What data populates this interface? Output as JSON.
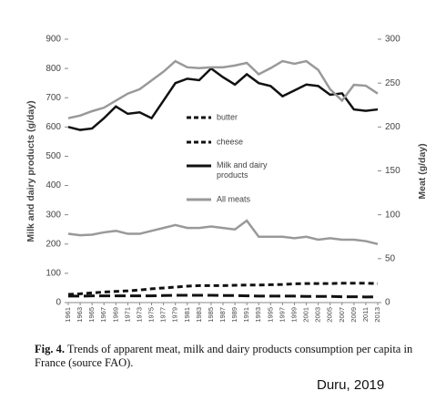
{
  "chart_data": {
    "type": "line",
    "categories": [
      "1961",
      "1963",
      "1965",
      "1967",
      "1969",
      "1971",
      "1973",
      "1975",
      "1977",
      "1979",
      "1981",
      "1983",
      "1985",
      "1987",
      "1989",
      "1991",
      "1993",
      "1995",
      "1997",
      "1999",
      "2001",
      "2003",
      "2005",
      "2007",
      "2009",
      "2011",
      "2013"
    ],
    "ylabel": "Milk and dairy products (g/day)",
    "y2label": "Meat (g/day)",
    "ylim": [
      0,
      900
    ],
    "yticks": [
      0,
      100,
      200,
      300,
      400,
      500,
      600,
      700,
      800,
      900
    ],
    "y2lim": [
      0,
      300
    ],
    "y2ticks": [
      0,
      50,
      100,
      150,
      200,
      250,
      300
    ],
    "series": [
      {
        "name": "butter",
        "color": "#111111",
        "dash": "long",
        "values": [
          22,
          22,
          23,
          23,
          23,
          23,
          23,
          23,
          24,
          25,
          25,
          25,
          25,
          24,
          24,
          23,
          22,
          22,
          22,
          22,
          21,
          21,
          21,
          20,
          20,
          19,
          20
        ]
      },
      {
        "name": "cheese",
        "color": "#111111",
        "dash": "short",
        "values": [
          28,
          30,
          33,
          36,
          38,
          40,
          43,
          47,
          50,
          53,
          56,
          58,
          58,
          58,
          59,
          60,
          60,
          61,
          62,
          64,
          65,
          65,
          65,
          66,
          66,
          66,
          65
        ]
      },
      {
        "name": "Milk and dairy products",
        "color": "#111111",
        "values": [
          600,
          590,
          595,
          630,
          670,
          645,
          650,
          630,
          690,
          750,
          765,
          760,
          800,
          770,
          745,
          780,
          750,
          740,
          705,
          725,
          745,
          740,
          710,
          715,
          660,
          655,
          660
        ]
      },
      {
        "name": "All meats",
        "color": "#999999",
        "axis": "y2",
        "values": [
          210,
          213,
          218,
          222,
          230,
          238,
          243,
          253,
          263,
          275,
          268,
          267,
          268,
          268,
          270,
          273,
          260,
          267,
          275,
          272,
          275,
          265,
          243,
          230,
          248,
          247,
          238
        ]
      },
      {
        "color": "#999999",
        "values": [
          235,
          230,
          232,
          240,
          245,
          235,
          235,
          245,
          255,
          265,
          255,
          255,
          260,
          255,
          250,
          280,
          225,
          225,
          225,
          220,
          225,
          215,
          220,
          215,
          215,
          210,
          200
        ]
      }
    ]
  },
  "caption": {
    "label": "Fig. 4.",
    "text": "Trends of apparent meat, milk and dairy products consumption per capita in France (source FAO)."
  },
  "source": "Duru, 2019"
}
